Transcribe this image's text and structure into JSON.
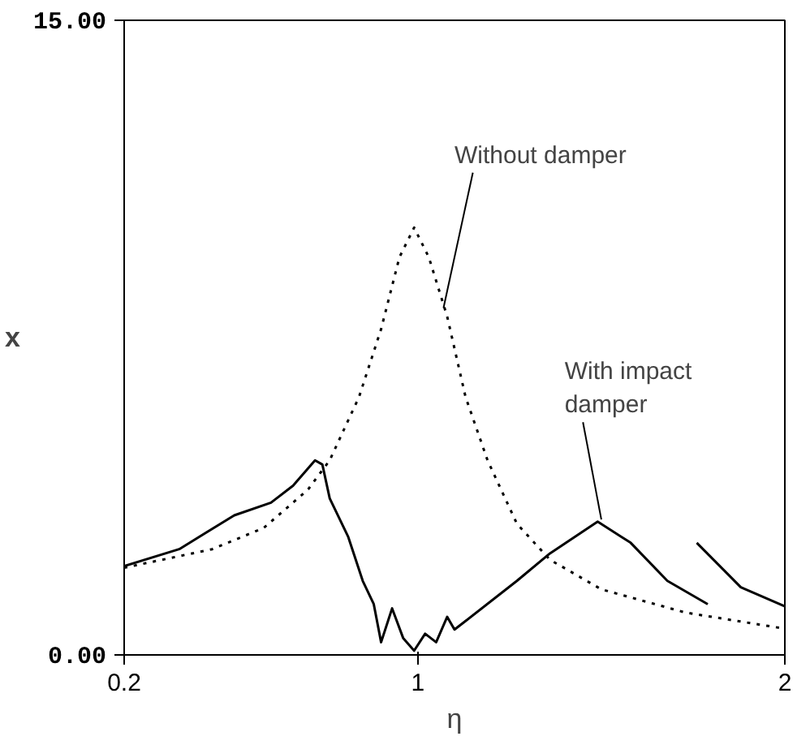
{
  "chart_data": {
    "type": "line",
    "xlabel": "η",
    "ylabel": "x",
    "xlim": [
      0.2,
      2
    ],
    "ylim": [
      0,
      15
    ],
    "xticks": [
      0.2,
      1,
      2
    ],
    "yticks": [
      {
        "value": 0,
        "label": "0.00"
      },
      {
        "value": 15,
        "label": "15.00"
      }
    ],
    "grid": false,
    "marker": "none",
    "series": [
      {
        "color": "#000000",
        "line_style": "dotted",
        "x": [
          0.2,
          0.44,
          0.58,
          0.7,
          0.76,
          0.84,
          0.9,
          0.95,
          0.99,
          1.03,
          1.08,
          1.13,
          1.19,
          1.27,
          1.36,
          1.5,
          1.73,
          2.0
        ],
        "values": [
          2.06,
          2.5,
          3.0,
          3.9,
          4.6,
          6.1,
          7.7,
          9.4,
          10.1,
          9.4,
          8.0,
          6.1,
          4.6,
          3.1,
          2.25,
          1.55,
          1.0,
          0.62
        ]
      },
      {
        "color": "#000000",
        "line_style": "solid",
        "x": [
          0.2,
          0.35,
          0.5,
          0.6,
          0.66,
          0.72,
          0.74,
          0.76,
          0.81,
          0.85,
          0.88,
          0.9,
          0.93,
          0.96,
          0.99,
          1.02,
          1.05,
          1.08,
          1.1,
          1.13,
          1.27,
          1.36,
          1.49,
          1.58,
          1.68,
          1.79
        ],
        "values": [
          2.1,
          2.5,
          3.3,
          3.6,
          4.0,
          4.6,
          4.5,
          3.7,
          2.8,
          1.75,
          1.2,
          0.3,
          1.1,
          0.4,
          0.1,
          0.5,
          0.3,
          0.9,
          0.6,
          0.8,
          1.75,
          2.4,
          3.15,
          2.65,
          1.75,
          1.2
        ]
      },
      {
        "color": "#000000",
        "line_style": "solid",
        "x": [
          1.76,
          1.88,
          2.0
        ],
        "values": [
          2.65,
          1.6,
          1.15
        ]
      }
    ],
    "annotations": [
      {
        "text": "Without damper",
        "x": 1.07,
        "y": 8.2
      },
      {
        "text": "With impact damper",
        "x": 1.5,
        "y": 3.2
      }
    ]
  }
}
